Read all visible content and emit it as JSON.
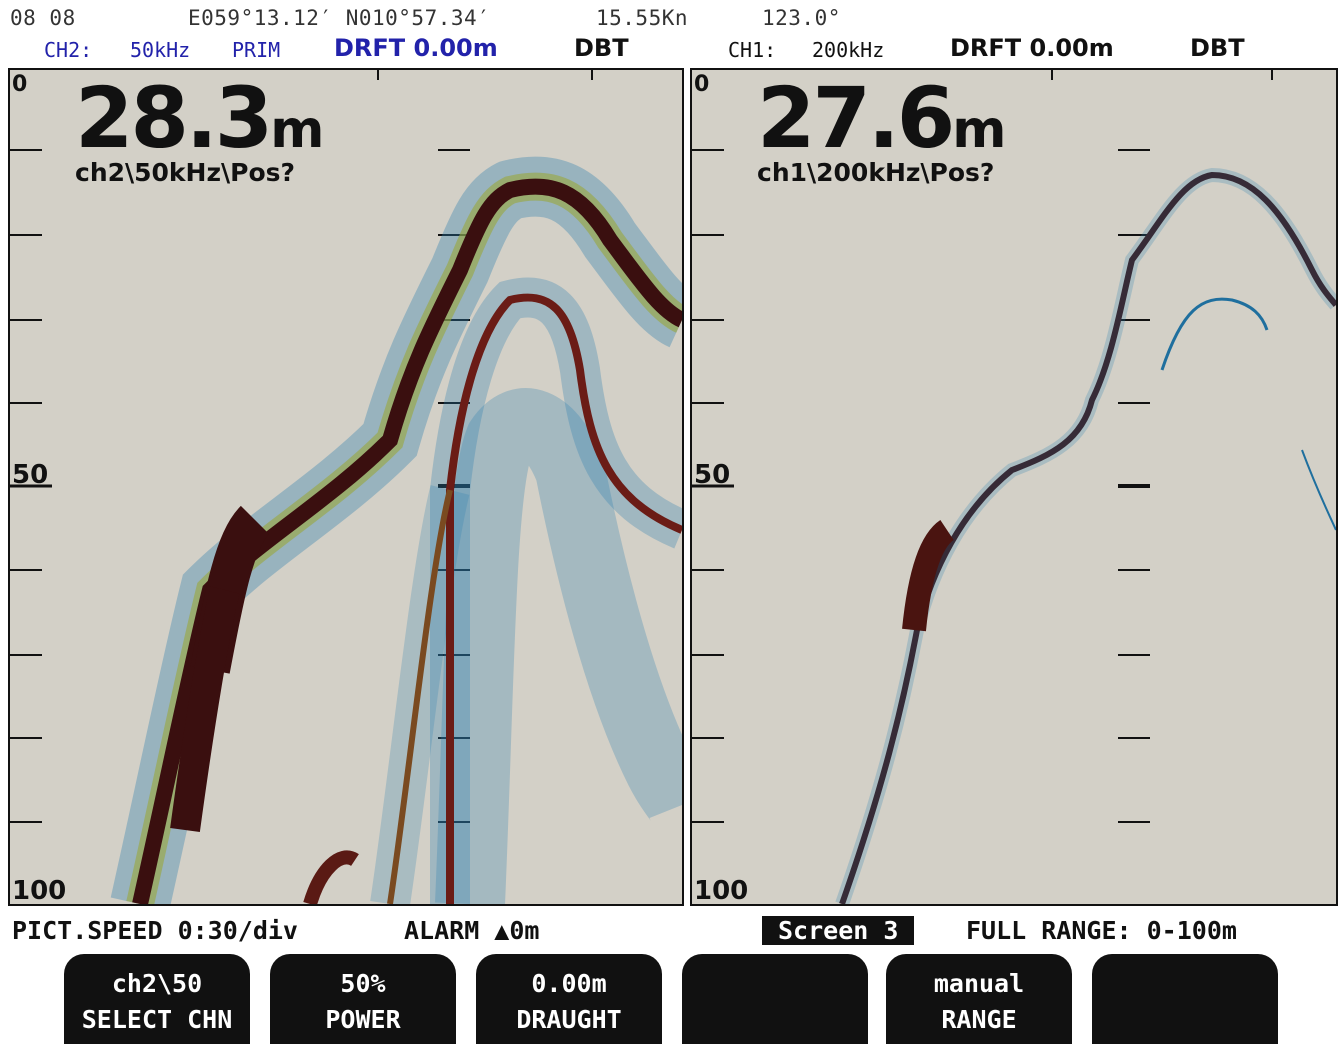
{
  "header": {
    "time": "08 08",
    "position": "E059°13.12′ N010°57.34′",
    "speed": "15.55Kn",
    "heading": "123.0°"
  },
  "left_channel": {
    "ch": "CH2:",
    "freq": "50kHz",
    "mode": "PRIM",
    "drift": "DRFT 0.00m",
    "ref": "DBT",
    "depth_value": "28.3",
    "depth_unit": "m",
    "label": "ch2\\50kHz\\Pos?",
    "scale_top": "0",
    "scale_mid": "50",
    "scale_bottom": "100"
  },
  "right_channel": {
    "ch": "CH1:",
    "freq": "200kHz",
    "drift": "DRFT 0.00m",
    "ref": "DBT",
    "depth_value": "27.6",
    "depth_unit": "m",
    "label": "ch1\\200kHz\\Pos?",
    "scale_top": "0",
    "scale_mid": "50",
    "scale_bottom": "100"
  },
  "status": {
    "pict_speed": "PICT.SPEED 0:30/div",
    "alarm": "ALARM ▲0m",
    "screen": "Screen  3",
    "full_range": "FULL RANGE: 0-100m"
  },
  "softkeys": [
    {
      "value": "ch2\\50",
      "label": "SELECT CHN"
    },
    {
      "value": "50%",
      "label": "POWER"
    },
    {
      "value": "0.00m",
      "label": "DRAUGHT"
    },
    {
      "value": "",
      "label": ""
    },
    {
      "value": "manual",
      "label": "RANGE"
    },
    {
      "value": "",
      "label": ""
    }
  ],
  "colors": {
    "background": "#d3d0c7",
    "strong_echo": "#3a0f0f",
    "weak_echo": "#1f6f9e"
  }
}
